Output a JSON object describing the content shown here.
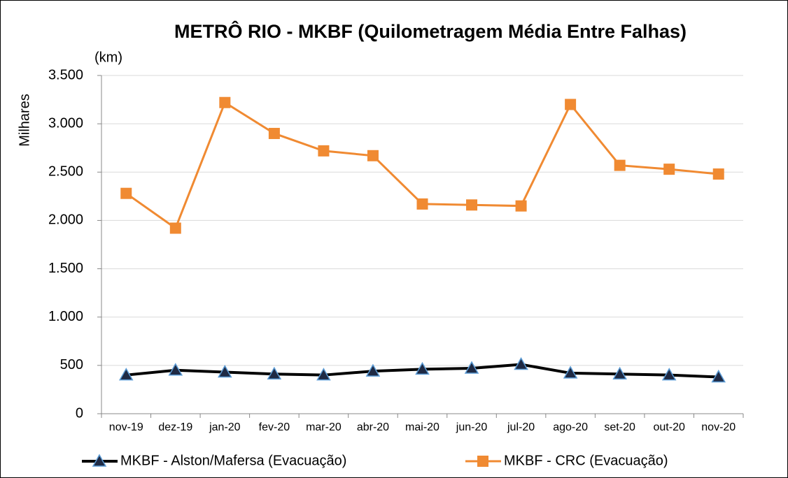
{
  "chart_data": {
    "type": "line",
    "title": "METRÔ RIO - MKBF (Quilometragem Média Entre Falhas)",
    "annotation": "(km)",
    "y_label": "Milhares",
    "categories": [
      "nov-19",
      "dez-19",
      "jan-20",
      "fev-20",
      "mar-20",
      "abr-20",
      "mai-20",
      "jun-20",
      "jul-20",
      "ago-20",
      "set-20",
      "out-20",
      "nov-20"
    ],
    "series": [
      {
        "name": "MKBF - Alston/Mafersa (Evacuação)",
        "color": "#000000",
        "marker": "triangle",
        "values": [
          400,
          450,
          430,
          410,
          400,
          440,
          460,
          470,
          510,
          420,
          410,
          400,
          380
        ]
      },
      {
        "name": "MKBF - CRC (Evacuação)",
        "color": "#f08a32",
        "marker": "square",
        "values": [
          2280,
          1920,
          3220,
          2900,
          2720,
          2670,
          2170,
          2160,
          2150,
          3200,
          2570,
          2530,
          2480
        ]
      }
    ],
    "ylim": [
      0,
      3500
    ],
    "yticks": [
      0,
      500,
      {
        "value": 1000,
        "label": "1.000"
      },
      {
        "value": 1500,
        "label": "1.500"
      },
      {
        "value": 2000,
        "label": "2.000"
      },
      {
        "value": 2500,
        "label": "2.500"
      },
      {
        "value": 3000,
        "label": "3.000"
      },
      {
        "value": 3500,
        "label": "3.500"
      }
    ],
    "grid": true,
    "legend": "bottom"
  }
}
